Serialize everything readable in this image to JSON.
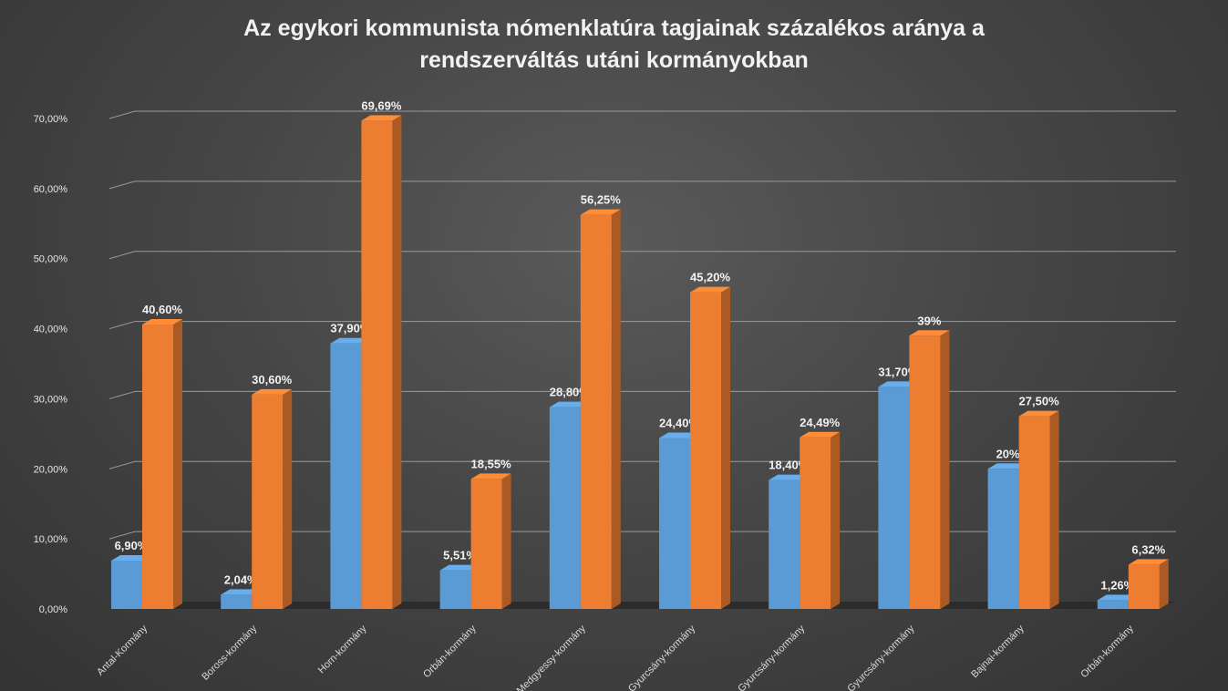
{
  "chart_data": {
    "type": "bar",
    "title": [
      "Az egykori kommunista nómenklatúra tagjainak százalékos aránya a",
      "rendszerváltás utáni kormányokban"
    ],
    "categories": [
      "Antal-Kormány",
      "Boross-kormány",
      "Horn-kormány",
      "Orbán-kormány",
      "Medgyessy-kormány",
      "Gyurcsány-kormány",
      "Gyurcsány-kormány",
      "Gyurcsány-kormány",
      "Bajnai-kormány",
      "Orbán-kormány"
    ],
    "series": [
      {
        "color": "#5b9bd5",
        "values": [
          6.9,
          2.04,
          37.9,
          5.51,
          28.8,
          24.4,
          18.4,
          31.7,
          20.0,
          1.26
        ],
        "labels": [
          "6,90%",
          "2,04%",
          "37,90%",
          "5,51%",
          "28,80%",
          "24,40%",
          "18,40%",
          "31,70%",
          "20%",
          "1,26%"
        ]
      },
      {
        "color": "#ed7d31",
        "values": [
          40.6,
          30.6,
          69.69,
          18.55,
          56.25,
          45.2,
          24.49,
          39.0,
          27.5,
          6.32
        ],
        "labels": [
          "40,60%",
          "30,60%",
          "69,69%",
          "18,55%",
          "56,25%",
          "45,20%",
          "24,49%",
          "39%",
          "27,50%",
          "6,32%"
        ]
      }
    ],
    "yticks": [
      0,
      10,
      20,
      30,
      40,
      50,
      60,
      70
    ],
    "ytick_labels": [
      "0,00%",
      "10,00%",
      "20,00%",
      "30,00%",
      "40,00%",
      "50,00%",
      "60,00%",
      "70,00%"
    ],
    "ylim": [
      0,
      70
    ],
    "grid": true,
    "legend": "none"
  }
}
